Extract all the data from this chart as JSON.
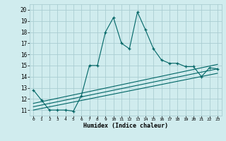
{
  "xlabel": "Humidex (Indice chaleur)",
  "ylabel": "",
  "bg_color": "#d0ecee",
  "grid_color": "#aacdd2",
  "line_color": "#006666",
  "xlim": [
    -0.5,
    23.5
  ],
  "ylim": [
    10.5,
    20.5
  ],
  "yticks": [
    11,
    12,
    13,
    14,
    15,
    16,
    17,
    18,
    19,
    20
  ],
  "xticks": [
    0,
    1,
    2,
    3,
    4,
    5,
    6,
    7,
    8,
    9,
    10,
    11,
    12,
    13,
    14,
    15,
    16,
    17,
    18,
    19,
    20,
    21,
    22,
    23
  ],
  "main_line_x": [
    0,
    1,
    2,
    3,
    4,
    5,
    6,
    7,
    8,
    9,
    10,
    11,
    12,
    13,
    14,
    15,
    16,
    17,
    18,
    19,
    20,
    21,
    22,
    23
  ],
  "main_line_y": [
    12.8,
    11.9,
    11.0,
    11.0,
    11.0,
    10.9,
    12.3,
    15.0,
    15.0,
    18.0,
    19.3,
    17.0,
    16.5,
    19.8,
    18.2,
    16.5,
    15.5,
    15.2,
    15.2,
    14.9,
    14.9,
    14.0,
    14.8,
    14.7
  ],
  "line2_x": [
    0,
    23
  ],
  "line2_y": [
    11.0,
    14.3
  ],
  "line3_x": [
    0,
    23
  ],
  "line3_y": [
    11.3,
    14.7
  ],
  "line4_x": [
    0,
    23
  ],
  "line4_y": [
    11.6,
    15.1
  ]
}
